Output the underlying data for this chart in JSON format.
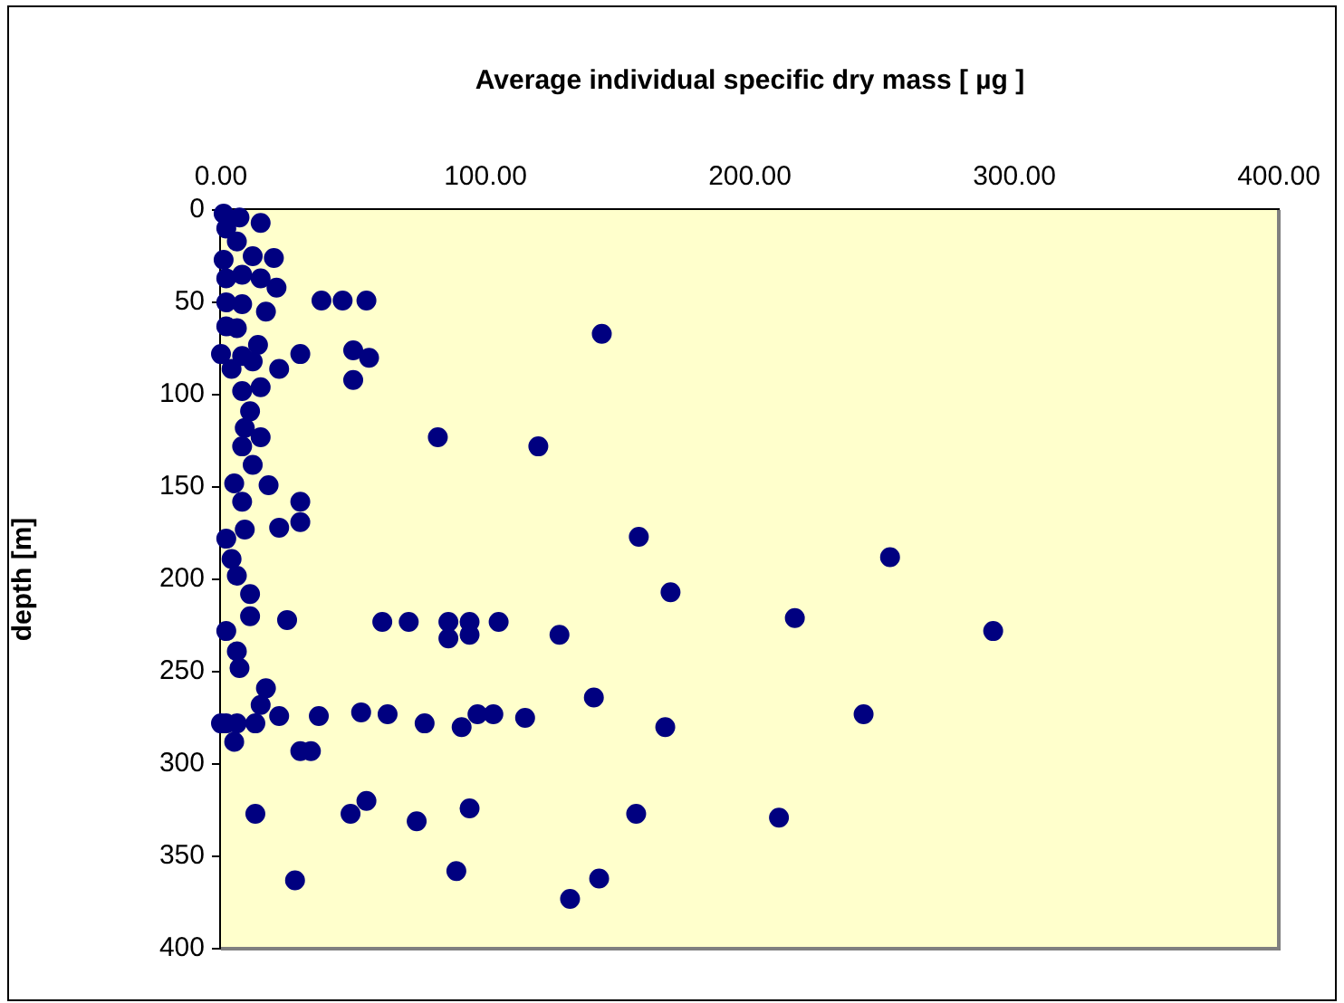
{
  "chart_data": {
    "type": "scatter",
    "xlabel": "Average individual specific dry mass [ µg ]",
    "ylabel": "depth [m]",
    "xlim": [
      0,
      400
    ],
    "xticks": [
      {
        "value": 0,
        "label": "0.00"
      },
      {
        "value": 100,
        "label": "100.00"
      },
      {
        "value": 200,
        "label": "200.00"
      },
      {
        "value": 300,
        "label": "300.00"
      },
      {
        "value": 400,
        "label": "400.00"
      }
    ],
    "ylim": [
      400,
      0
    ],
    "yticks": [
      0,
      50,
      100,
      150,
      200,
      250,
      300,
      350,
      400
    ],
    "grid": false,
    "marker": "circle",
    "series": [
      {
        "color": "#000080",
        "x": [
          15,
          1,
          7,
          2,
          6,
          1,
          12,
          20,
          2,
          8,
          15,
          21,
          2,
          8,
          17,
          38,
          46,
          55,
          2,
          6,
          14,
          0,
          8,
          12,
          30,
          50,
          56,
          50,
          22,
          4,
          8,
          15,
          11,
          9,
          15,
          8,
          12,
          5,
          8,
          18,
          30,
          30,
          22,
          9,
          2,
          4,
          6,
          144,
          82,
          120,
          158,
          170,
          217,
          253,
          61,
          71,
          86,
          94,
          105,
          86,
          94,
          128,
          292,
          11,
          11,
          25,
          2,
          6,
          7,
          17,
          15,
          0,
          2,
          6,
          5,
          13,
          22,
          37,
          53,
          63,
          77,
          91,
          97,
          103,
          115,
          168,
          141,
          243,
          30,
          34,
          13,
          49,
          55,
          74,
          94,
          157,
          211,
          28,
          89,
          143,
          132
        ],
        "values": [
          7,
          2,
          4,
          10,
          17,
          27,
          25,
          26,
          37,
          35,
          37,
          42,
          50,
          51,
          55,
          49,
          49,
          49,
          63,
          64,
          73,
          78,
          79,
          82,
          78,
          76,
          80,
          92,
          86,
          86,
          98,
          96,
          109,
          118,
          123,
          128,
          138,
          148,
          158,
          149,
          158,
          169,
          172,
          173,
          178,
          189,
          198,
          67,
          123,
          128,
          177,
          207,
          221,
          188,
          223,
          223,
          223,
          223,
          223,
          232,
          230,
          230,
          228,
          208,
          220,
          222,
          228,
          239,
          248,
          259,
          268,
          278,
          278,
          278,
          288,
          278,
          274,
          274,
          272,
          273,
          278,
          280,
          273,
          273,
          275,
          280,
          264,
          273,
          293,
          293,
          327,
          327,
          320,
          331,
          324,
          327,
          329,
          363,
          358,
          362,
          373
        ]
      }
    ]
  }
}
